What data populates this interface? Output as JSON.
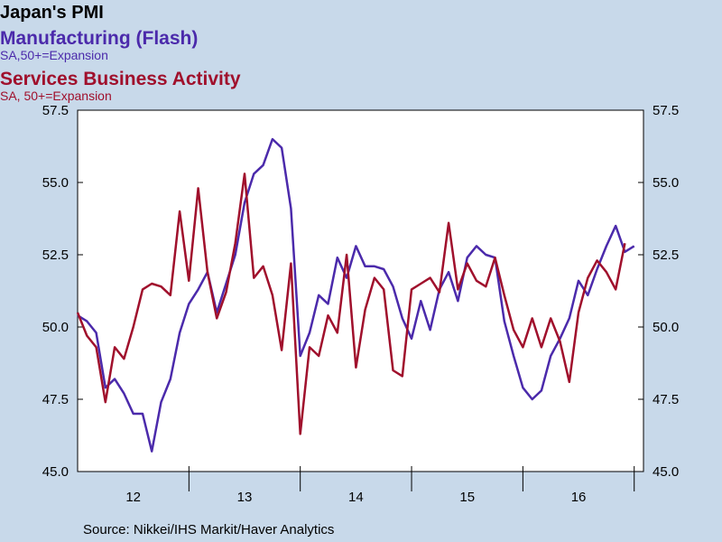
{
  "title": "Japan's PMI",
  "subtitle_series_1": "Manufacturing (Flash)",
  "note_series_1": "SA,50+=Expansion",
  "subtitle_series_2": "Services Business Activity",
  "note_series_2": "SA, 50+=Expansion",
  "source": "Source:  Nikkei/IHS Markit/Haver Analytics",
  "colors": {
    "manufacturing": "#4b2aab",
    "services": "#a0102c",
    "background": "#c8d9ea",
    "plot_background": "#ffffff"
  },
  "chart_data": {
    "type": "line",
    "x_ticks": [
      "12",
      "13",
      "14",
      "15",
      "16"
    ],
    "y_ticks": [
      "45.0",
      "47.5",
      "50.0",
      "52.5",
      "55.0",
      "57.5"
    ],
    "ylim": [
      45.0,
      57.5
    ],
    "xlim": [
      "2012-01",
      "2017-02"
    ],
    "grid": false,
    "y_axis_both_sides": true,
    "series": [
      {
        "name": "Manufacturing (Flash)",
        "color": "#4b2aab",
        "start": "2012-01",
        "values": [
          50.4,
          50.2,
          49.8,
          47.9,
          48.2,
          47.7,
          47.0,
          47.0,
          45.7,
          47.4,
          48.2,
          49.8,
          50.8,
          51.3,
          51.9,
          50.5,
          51.5,
          52.5,
          54.3,
          55.3,
          55.6,
          56.5,
          56.2,
          54.1,
          49.0,
          49.8,
          51.1,
          50.8,
          52.4,
          51.7,
          52.8,
          52.1,
          52.1,
          52.0,
          51.4,
          50.3,
          49.6,
          50.9,
          49.9,
          51.3,
          51.9,
          50.9,
          52.4,
          52.8,
          52.5,
          52.4,
          50.2,
          49.0,
          47.9,
          47.5,
          47.8,
          49.0,
          49.6,
          50.3,
          51.6,
          51.1,
          52.0,
          52.8,
          53.5,
          52.6,
          52.8
        ]
      },
      {
        "name": "Services Business Activity",
        "color": "#a0102c",
        "start": "2012-01",
        "values": [
          50.5,
          49.7,
          49.3,
          47.4,
          49.3,
          48.9,
          50.0,
          51.3,
          51.5,
          51.4,
          51.1,
          54.0,
          51.6,
          54.8,
          51.9,
          50.3,
          51.2,
          52.9,
          55.3,
          51.7,
          52.1,
          51.1,
          49.2,
          52.2,
          46.3,
          49.3,
          49.0,
          50.4,
          49.8,
          52.5,
          48.6,
          50.6,
          51.7,
          51.3,
          48.5,
          48.3,
          51.3,
          51.5,
          51.7,
          51.2,
          53.6,
          51.3,
          52.2,
          51.6,
          51.4,
          52.4,
          51.1,
          49.9,
          49.3,
          50.3,
          49.3,
          50.3,
          49.5,
          48.1,
          50.5,
          51.7,
          52.3,
          51.9,
          51.3,
          52.9
        ]
      }
    ]
  }
}
